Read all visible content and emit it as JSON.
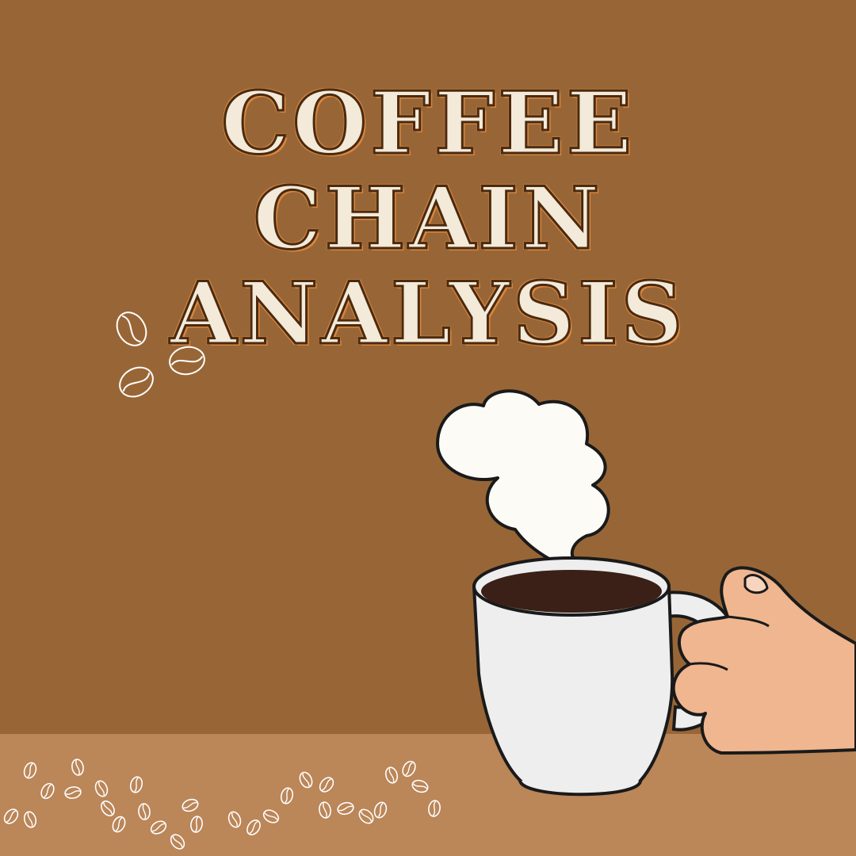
{
  "title": {
    "line1": "COFFEE",
    "line2": "CHAIN",
    "line3": "ANALYSIS"
  },
  "colors": {
    "background": "#986636",
    "table": "#bb8658",
    "title_fill": "#f3ead9",
    "title_outline": "#d9863e",
    "cup": "#eeeeee",
    "coffee": "#3a2016",
    "steam": "#fdfbf6",
    "hand": "#f0b690",
    "line": "#1a1a1a"
  },
  "icons": [
    "coffee-bean-icon",
    "coffee-cup-icon",
    "steam-icon",
    "hand-icon"
  ]
}
